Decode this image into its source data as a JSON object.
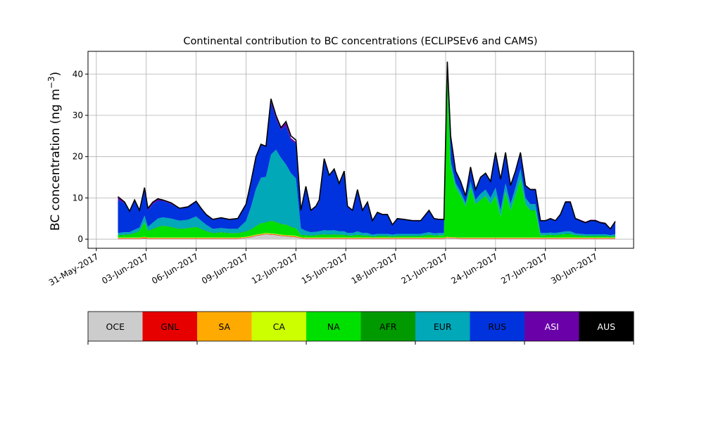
{
  "chart_data": {
    "type": "area",
    "stacked": true,
    "title": "Continental contribution to BC concentrations (ECLIPSEv6 and CAMS)",
    "ylabel_main": "BC concentration (ng m",
    "ylabel_unit_exp": "−3",
    "ylabel_close": ")",
    "xlim_days": [
      -0.5,
      32.3
    ],
    "ylim": [
      -2.2,
      45.5
    ],
    "yticks": [
      0,
      10,
      20,
      30,
      40
    ],
    "xtick_labels": [
      "31-May-2017",
      "03-Jun-2017",
      "06-Jun-2017",
      "09-Jun-2017",
      "12-Jun-2017",
      "15-Jun-2017",
      "18-Jun-2017",
      "21-Jun-2017",
      "24-Jun-2017",
      "27-Jun-2017",
      "30-Jun-2017"
    ],
    "xtick_days": [
      0,
      3,
      6,
      9,
      12,
      15,
      18,
      21,
      24,
      27,
      30
    ],
    "categories": [
      "OCE",
      "GNL",
      "SA",
      "CA",
      "NA",
      "AFR",
      "EUR",
      "RUS",
      "ASI",
      "AUS"
    ],
    "colors": [
      "#cccccc",
      "#e60000",
      "#ffaa00",
      "#ccff00",
      "#00e000",
      "#009a00",
      "#00a8b8",
      "#0033dd",
      "#6a00a8",
      "#000000"
    ],
    "legend_text_colors": [
      "#000000",
      "#000000",
      "#000000",
      "#000000",
      "#000000",
      "#000000",
      "#000000",
      "#000000",
      "#ffffff",
      "#ffffff"
    ],
    "day_of_first_point_offset_note": "x in days after 31-May-2017",
    "x": [
      1.3,
      1.7,
      2.0,
      2.3,
      2.6,
      2.9,
      3.1,
      3.4,
      3.7,
      4.0,
      4.5,
      5.0,
      5.5,
      6.0,
      6.3,
      6.6,
      7.0,
      7.5,
      8.0,
      8.5,
      9.0,
      9.3,
      9.6,
      9.9,
      10.2,
      10.5,
      10.8,
      11.1,
      11.4,
      11.7,
      12.0,
      12.3,
      12.6,
      12.9,
      13.2,
      13.4,
      13.7,
      14.0,
      14.3,
      14.6,
      14.9,
      15.1,
      15.4,
      15.7,
      16.0,
      16.3,
      16.6,
      16.9,
      17.2,
      17.5,
      17.8,
      18.1,
      18.5,
      19.0,
      19.5,
      20.0,
      20.3,
      20.6,
      20.9,
      21.1,
      21.3,
      21.6,
      21.9,
      22.2,
      22.5,
      22.8,
      23.1,
      23.4,
      23.7,
      24.0,
      24.3,
      24.6,
      24.9,
      25.2,
      25.5,
      25.8,
      26.1,
      26.4,
      26.7,
      27.0,
      27.3,
      27.6,
      27.9,
      28.2,
      28.5,
      28.8,
      29.1,
      29.4,
      29.7,
      30.0,
      30.3,
      30.6,
      30.9,
      31.2
    ],
    "total": [
      10.3,
      9.0,
      6.8,
      9.5,
      7.0,
      12.5,
      7.5,
      9.0,
      9.8,
      9.5,
      8.8,
      7.5,
      7.8,
      9.2,
      7.5,
      6.0,
      4.8,
      5.2,
      4.8,
      5.0,
      8.5,
      14.0,
      20.0,
      23.0,
      22.5,
      34.0,
      30.0,
      27.0,
      28.5,
      25.0,
      24.0,
      7.0,
      12.8,
      7.0,
      8.0,
      9.5,
      19.5,
      15.5,
      17.0,
      13.5,
      16.5,
      8.0,
      7.0,
      12.0,
      7.0,
      9.0,
      4.5,
      6.5,
      6.0,
      6.0,
      3.5,
      5.0,
      4.8,
      4.5,
      4.5,
      7.0,
      5.0,
      4.8,
      4.8,
      43.0,
      25.0,
      16.5,
      14.0,
      10.5,
      17.5,
      12.0,
      15.0,
      16.0,
      14.0,
      21.0,
      14.5,
      21.0,
      13.0,
      16.5,
      21.0,
      13.0,
      12.0,
      12.0,
      4.5,
      4.5,
      5.0,
      4.5,
      6.0,
      9.0,
      9.0,
      5.0,
      4.5,
      4.0,
      4.5,
      4.5,
      4.0,
      3.8,
      2.5,
      4.3
    ],
    "series": [
      {
        "name": "OCE",
        "values": [
          0.1,
          0.1,
          0.1,
          0.1,
          0.1,
          0.2,
          0.1,
          0.1,
          0.1,
          0.1,
          0.1,
          0.1,
          0.1,
          0.1,
          0.1,
          0.1,
          0.1,
          0.1,
          0.1,
          0.1,
          0.3,
          0.5,
          0.8,
          1.0,
          1.2,
          1.1,
          1.0,
          0.8,
          0.7,
          0.6,
          0.5,
          0.2,
          0.1,
          0.1,
          0.1,
          0.1,
          0.1,
          0.1,
          0.1,
          0.1,
          0.1,
          0.1,
          0.1,
          0.1,
          0.1,
          0.1,
          0.1,
          0.1,
          0.1,
          0.1,
          0.1,
          0.1,
          0.1,
          0.1,
          0.1,
          0.1,
          0.1,
          0.1,
          0.1,
          0.3,
          0.2,
          0.2,
          0.1,
          0.1,
          0.1,
          0.1,
          0.1,
          0.1,
          0.1,
          0.1,
          0.1,
          0.1,
          0.1,
          0.1,
          0.1,
          0.1,
          0.1,
          0.1,
          0.1,
          0.1,
          0.1,
          0.1,
          0.1,
          0.1,
          0.1,
          0.1,
          0.1,
          0.1,
          0.1,
          0.1,
          0.1,
          0.1,
          0.1,
          0.1
        ]
      },
      {
        "name": "GNL",
        "values": [
          0.1,
          0.1,
          0.1,
          0.1,
          0.1,
          0.2,
          0.1,
          0.1,
          0.1,
          0.1,
          0.1,
          0.1,
          0.1,
          0.1,
          0.1,
          0.1,
          0.1,
          0.1,
          0.1,
          0.1,
          0.1,
          0.1,
          0.1,
          0.1,
          0.1,
          0.1,
          0.1,
          0.1,
          0.1,
          0.1,
          0.1,
          0.1,
          0.1,
          0.1,
          0.1,
          0.1,
          0.1,
          0.1,
          0.1,
          0.1,
          0.1,
          0.1,
          0.1,
          0.1,
          0.1,
          0.1,
          0.1,
          0.1,
          0.1,
          0.1,
          0.1,
          0.1,
          0.1,
          0.1,
          0.1,
          0.1,
          0.1,
          0.1,
          0.1,
          0.1,
          0.1,
          0.1,
          0.1,
          0.1,
          0.1,
          0.1,
          0.1,
          0.1,
          0.1,
          0.1,
          0.1,
          0.1,
          0.1,
          0.1,
          0.1,
          0.1,
          0.1,
          0.1,
          0.1,
          0.1,
          0.1,
          0.1,
          0.1,
          0.1,
          0.1,
          0.1,
          0.1,
          0.1,
          0.1,
          0.1,
          0.1,
          0.1,
          0.1,
          0.1
        ]
      },
      {
        "name": "SA",
        "values": [
          0.1,
          0.1,
          0.1,
          0.1,
          0.1,
          0.1,
          0.1,
          0.1,
          0.1,
          0.1,
          0.1,
          0.1,
          0.1,
          0.1,
          0.1,
          0.1,
          0.1,
          0.1,
          0.1,
          0.1,
          0.1,
          0.1,
          0.1,
          0.1,
          0.1,
          0.1,
          0.1,
          0.1,
          0.1,
          0.1,
          0.1,
          0.1,
          0.1,
          0.1,
          0.1,
          0.1,
          0.1,
          0.1,
          0.1,
          0.1,
          0.1,
          0.1,
          0.1,
          0.1,
          0.1,
          0.1,
          0.1,
          0.1,
          0.1,
          0.1,
          0.1,
          0.1,
          0.1,
          0.1,
          0.1,
          0.1,
          0.1,
          0.1,
          0.1,
          0.1,
          0.1,
          0.1,
          0.1,
          0.1,
          0.1,
          0.1,
          0.1,
          0.1,
          0.1,
          0.1,
          0.1,
          0.1,
          0.1,
          0.1,
          0.1,
          0.1,
          0.1,
          0.1,
          0.1,
          0.1,
          0.1,
          0.1,
          0.1,
          0.1,
          0.1,
          0.1,
          0.1,
          0.1,
          0.1,
          0.1,
          0.1,
          0.1,
          0.1,
          0.1
        ]
      },
      {
        "name": "CA",
        "values": [
          0.1,
          0.1,
          0.1,
          0.1,
          0.1,
          0.1,
          0.1,
          0.1,
          0.1,
          0.1,
          0.1,
          0.1,
          0.1,
          0.1,
          0.1,
          0.1,
          0.1,
          0.1,
          0.1,
          0.1,
          0.1,
          0.1,
          0.1,
          0.1,
          0.1,
          0.1,
          0.1,
          0.1,
          0.1,
          0.1,
          0.1,
          0.1,
          0.1,
          0.1,
          0.1,
          0.1,
          0.1,
          0.1,
          0.1,
          0.1,
          0.1,
          0.1,
          0.1,
          0.1,
          0.1,
          0.1,
          0.1,
          0.1,
          0.1,
          0.1,
          0.1,
          0.1,
          0.1,
          0.1,
          0.1,
          0.1,
          0.1,
          0.1,
          0.1,
          0.1,
          0.1,
          0.1,
          0.1,
          0.1,
          0.1,
          0.1,
          0.1,
          0.1,
          0.1,
          0.1,
          0.1,
          0.1,
          0.1,
          0.1,
          0.1,
          0.1,
          0.1,
          0.1,
          0.1,
          0.1,
          0.1,
          0.1,
          0.1,
          0.1,
          0.1,
          0.1,
          0.1,
          0.1,
          0.1,
          0.1,
          0.1,
          0.1,
          0.1,
          0.1
        ]
      },
      {
        "name": "NA",
        "values": [
          0.5,
          0.6,
          0.7,
          1.0,
          1.5,
          3.5,
          1.5,
          2.0,
          2.5,
          2.8,
          2.5,
          2.0,
          2.2,
          2.5,
          2.0,
          1.5,
          1.0,
          1.2,
          1.0,
          1.0,
          1.2,
          1.5,
          2.0,
          2.5,
          2.5,
          3.0,
          2.8,
          2.5,
          2.5,
          2.0,
          1.8,
          0.5,
          0.5,
          0.4,
          0.5,
          0.6,
          0.7,
          0.6,
          0.7,
          0.6,
          0.6,
          0.4,
          0.4,
          0.6,
          0.4,
          0.4,
          0.2,
          0.3,
          0.3,
          0.3,
          0.2,
          0.3,
          0.3,
          0.3,
          0.3,
          0.6,
          0.4,
          0.5,
          0.5,
          40.0,
          17.0,
          12.0,
          10.0,
          7.5,
          12.0,
          8.0,
          9.0,
          10.0,
          8.0,
          10.0,
          5.0,
          11.0,
          6.5,
          10.0,
          14.0,
          8.0,
          6.5,
          6.5,
          0.5,
          0.5,
          0.6,
          0.5,
          0.7,
          0.8,
          0.8,
          0.5,
          0.4,
          0.3,
          0.3,
          0.3,
          0.3,
          0.3,
          0.2,
          0.3
        ]
      },
      {
        "name": "AFR",
        "values": [
          0.1,
          0.1,
          0.1,
          0.1,
          0.1,
          0.1,
          0.1,
          0.1,
          0.1,
          0.1,
          0.1,
          0.1,
          0.1,
          0.1,
          0.1,
          0.1,
          0.1,
          0.1,
          0.1,
          0.1,
          0.1,
          0.1,
          0.1,
          0.1,
          0.1,
          0.1,
          0.1,
          0.1,
          0.1,
          0.1,
          0.1,
          0.1,
          0.1,
          0.1,
          0.1,
          0.1,
          0.1,
          0.1,
          0.1,
          0.1,
          0.1,
          0.1,
          0.1,
          0.1,
          0.1,
          0.1,
          0.1,
          0.1,
          0.1,
          0.1,
          0.1,
          0.1,
          0.1,
          0.1,
          0.1,
          0.1,
          0.1,
          0.1,
          0.1,
          0.1,
          0.1,
          0.1,
          0.1,
          0.1,
          0.1,
          0.1,
          0.1,
          0.1,
          0.1,
          0.1,
          0.1,
          0.1,
          0.1,
          0.1,
          0.1,
          0.1,
          0.1,
          0.1,
          0.1,
          0.1,
          0.1,
          0.1,
          0.1,
          0.1,
          0.1,
          0.1,
          0.1,
          0.1,
          0.1,
          0.1,
          0.1,
          0.1,
          0.1,
          0.1
        ]
      },
      {
        "name": "EUR",
        "values": [
          0.5,
          0.6,
          0.5,
          0.8,
          0.8,
          1.5,
          1.0,
          1.5,
          2.0,
          2.0,
          2.0,
          2.0,
          2.0,
          2.5,
          2.0,
          1.5,
          1.0,
          1.0,
          1.0,
          1.0,
          2.5,
          5.5,
          9.0,
          11.0,
          11.0,
          16.0,
          17.5,
          16.0,
          14.5,
          13.0,
          12.0,
          1.5,
          1.0,
          0.8,
          0.8,
          0.8,
          1.0,
          1.0,
          1.0,
          0.8,
          0.8,
          0.6,
          0.6,
          0.8,
          0.6,
          0.6,
          0.4,
          0.5,
          0.5,
          0.5,
          0.4,
          0.5,
          0.5,
          0.5,
          0.5,
          0.6,
          0.5,
          0.5,
          0.5,
          1.0,
          1.5,
          1.0,
          1.0,
          0.8,
          1.5,
          1.0,
          1.5,
          1.5,
          1.5,
          2.0,
          1.5,
          2.0,
          1.5,
          2.0,
          2.5,
          1.5,
          1.5,
          1.5,
          0.5,
          0.5,
          0.5,
          0.5,
          0.5,
          0.6,
          0.6,
          0.4,
          0.4,
          0.4,
          0.4,
          0.4,
          0.4,
          0.4,
          0.3,
          0.4
        ]
      },
      {
        "name": "RUS",
        "values": [
          8.0,
          7.0,
          5.0,
          7.0,
          4.0,
          6.3,
          4.0,
          4.5,
          4.3,
          4.0,
          3.5,
          3.0,
          3.2,
          3.5,
          3.0,
          2.5,
          2.3,
          2.5,
          2.3,
          2.5,
          3.9,
          5.8,
          7.5,
          8.0,
          7.5,
          12.6,
          7.5,
          6.8,
          9.3,
          8.0,
          8.5,
          4.3,
          10.6,
          5.2,
          6.0,
          7.2,
          17.1,
          13.3,
          14.6,
          11.5,
          14.4,
          6.5,
          5.5,
          10.0,
          5.4,
          7.4,
          3.4,
          5.2,
          4.7,
          4.7,
          2.4,
          3.7,
          3.5,
          3.2,
          3.2,
          5.2,
          3.6,
          3.3,
          3.3,
          1.0,
          5.6,
          2.7,
          2.3,
          1.6,
          3.3,
          2.4,
          3.8,
          3.8,
          3.9,
          8.3,
          7.4,
          7.3,
          4.4,
          3.9,
          3.9,
          2.9,
          3.5,
          3.5,
          3.0,
          3.0,
          3.4,
          3.0,
          4.3,
          7.1,
          7.1,
          3.7,
          3.3,
          2.9,
          3.4,
          3.4,
          2.9,
          2.7,
          1.6,
          3.2
        ]
      },
      {
        "name": "ASI",
        "values": [
          0.8,
          0.3,
          0.2,
          0.2,
          0.1,
          0.3,
          0.5,
          0.5,
          0.5,
          0.3,
          0.3,
          0.1,
          0.1,
          0.3,
          0.1,
          0.1,
          0.1,
          0.1,
          0.1,
          0.1,
          0.1,
          0.2,
          0.3,
          0.1,
          0.1,
          0.9,
          0.9,
          0.8,
          0.8,
          0.5,
          0.3,
          0.1,
          0.1,
          0.1,
          0.1,
          0.1,
          0.1,
          0.1,
          0.1,
          0.1,
          0.1,
          0.1,
          0.1,
          0.1,
          0.1,
          0.1,
          0.1,
          0.1,
          0.1,
          0.1,
          0.1,
          0.1,
          0.1,
          0.1,
          0.1,
          0.1,
          0.1,
          0.1,
          0.1,
          0.2,
          0.2,
          0.2,
          0.2,
          0.2,
          0.2,
          0.2,
          0.2,
          0.2,
          0.2,
          0.2,
          0.2,
          0.2,
          0.2,
          0.2,
          0.2,
          0.2,
          0.2,
          0.2,
          0.1,
          0.1,
          0.1,
          0.1,
          0.1,
          0.2,
          0.2,
          0.1,
          0.1,
          0.1,
          0.1,
          0.1,
          0.1,
          0.1,
          0.1,
          0.1
        ]
      },
      {
        "name": "AUS",
        "values": [
          0.0,
          0.0,
          0.0,
          0.0,
          0.0,
          0.0,
          0.0,
          0.0,
          0.0,
          0.0,
          0.0,
          0.0,
          0.0,
          0.0,
          0.0,
          0.0,
          0.0,
          0.0,
          0.0,
          0.0,
          0.0,
          0.0,
          0.0,
          0.0,
          0.0,
          0.0,
          0.0,
          0.0,
          0.0,
          0.0,
          0.0,
          0.0,
          0.0,
          0.0,
          0.0,
          0.0,
          0.0,
          0.0,
          0.0,
          0.0,
          0.0,
          0.0,
          0.0,
          0.0,
          0.0,
          0.0,
          0.0,
          0.0,
          0.0,
          0.0,
          0.0,
          0.0,
          0.0,
          0.0,
          0.0,
          0.0,
          0.0,
          0.0,
          0.0,
          0.0,
          0.0,
          0.0,
          0.0,
          0.0,
          0.0,
          0.0,
          0.0,
          0.0,
          0.0,
          0.0,
          0.0,
          0.0,
          0.0,
          0.0,
          0.0,
          0.0,
          0.0,
          0.0,
          0.0,
          0.0,
          0.0,
          0.0,
          0.0,
          0.0,
          0.0,
          0.0,
          0.0,
          0.0,
          0.0,
          0.0,
          0.0,
          0.0,
          0.0,
          0.0
        ]
      }
    ],
    "legend_placement": "colorbar-below"
  }
}
